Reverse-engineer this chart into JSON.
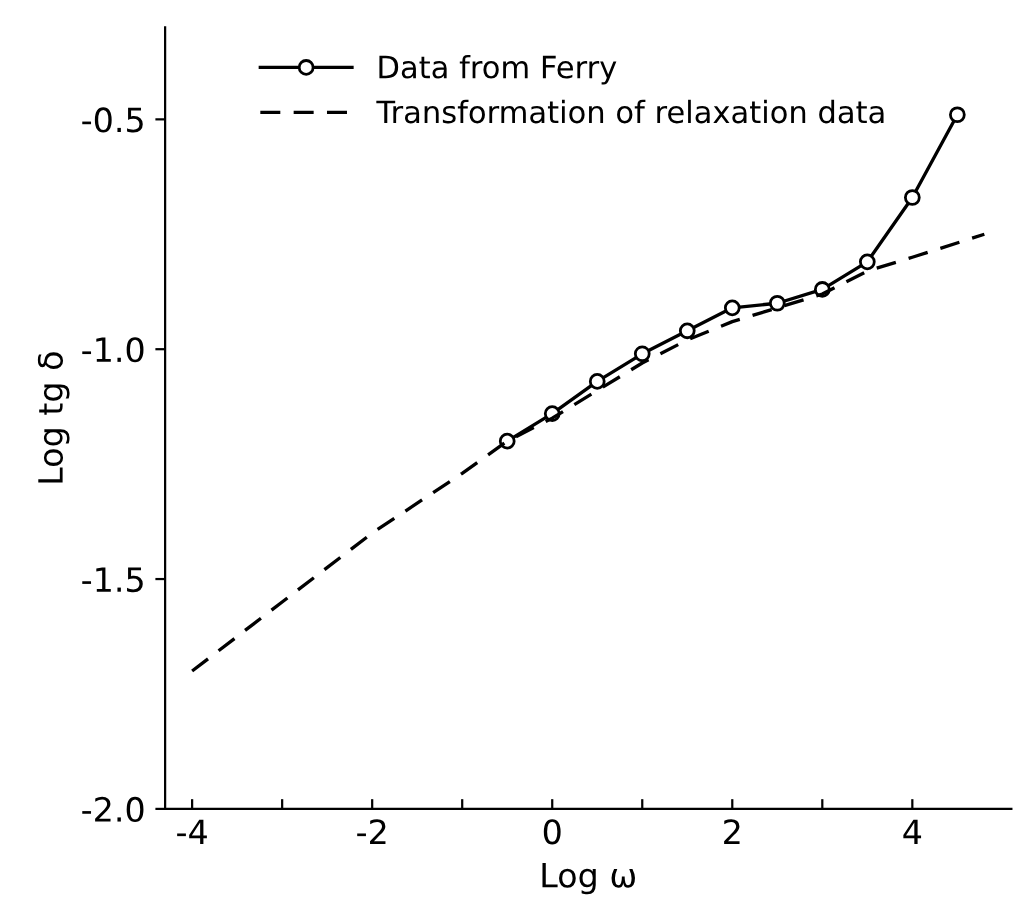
{
  "chart_data": {
    "type": "line",
    "xlabel": "Log ω",
    "ylabel": "Log tg δ",
    "series": [
      {
        "name": "Data from Ferry",
        "color": "#000000",
        "marker": "circle",
        "line_style": "solid",
        "x": [
          -0.5,
          0,
          0.5,
          1,
          1.5,
          2,
          2.5,
          3,
          3.5,
          4,
          4.5
        ],
        "values": [
          -1.2,
          -1.14,
          -1.07,
          -1.01,
          -0.96,
          -0.91,
          -0.9,
          -0.87,
          -0.81,
          -0.67,
          -0.49
        ]
      },
      {
        "name": "Transformation of relaxation data",
        "color": "#000000",
        "marker": "none",
        "line_style": "dashed",
        "x": [
          -4,
          -3,
          -2,
          -1,
          -0.5,
          0,
          0.5,
          1,
          1.5,
          2,
          2.5,
          3,
          3.5,
          4,
          4.8
        ],
        "values": [
          -1.7,
          -1.55,
          -1.4,
          -1.27,
          -1.2,
          -1.15,
          -1.09,
          -1.03,
          -0.98,
          -0.94,
          -0.91,
          -0.88,
          -0.83,
          -0.8,
          -0.75
        ]
      }
    ],
    "xlim": [
      -4.3,
      5.1
    ],
    "ylim": [
      -2.0,
      -0.3
    ],
    "xticks": [
      -4,
      {
        "value": -3,
        "label": null
      },
      -2,
      {
        "value": -1,
        "label": null
      },
      0,
      {
        "value": 1,
        "label": null
      },
      2,
      {
        "value": 3,
        "label": null
      },
      4
    ],
    "yticks": [
      {
        "value": -2.0,
        "label": "-2.0"
      },
      {
        "value": -1.5,
        "label": "-1.5"
      },
      {
        "value": -1.0,
        "label": "-1.0"
      },
      {
        "value": -0.5,
        "label": "-0.5"
      }
    ],
    "grid": false,
    "legend": "top left"
  }
}
